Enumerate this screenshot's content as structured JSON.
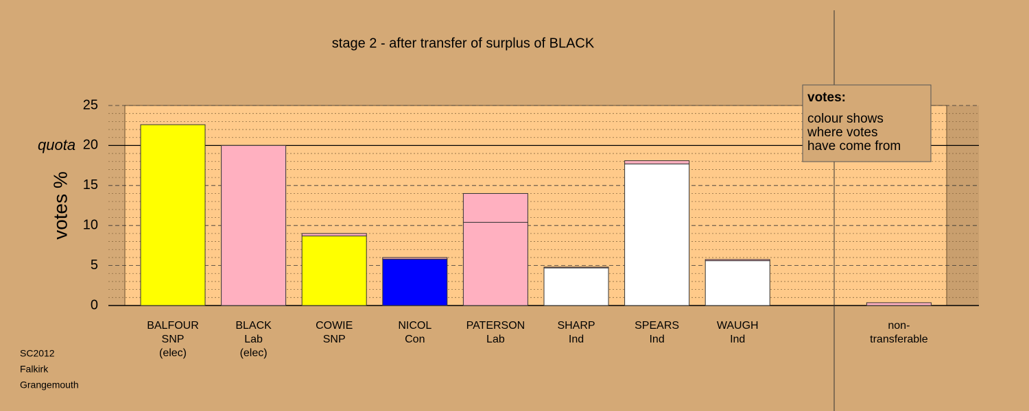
{
  "chart_data": {
    "type": "stacked_bar",
    "title": "stage 2 - after transfer of surplus of BLACK",
    "y_label": "votes %",
    "quota_label": "quota",
    "quota": 20,
    "categories": [
      [
        "BALFOUR",
        "SNP",
        "(elec)"
      ],
      [
        "BLACK",
        "Lab",
        "(elec)"
      ],
      [
        "COWIE",
        "SNP"
      ],
      [
        "NICOL",
        "Con"
      ],
      [
        "PATERSON",
        "Lab"
      ],
      [
        "SHARP",
        "Ind"
      ],
      [
        "SPEARS",
        "Ind"
      ],
      [
        "WAUGH",
        "Ind"
      ],
      null,
      [
        "non-",
        "transferable"
      ]
    ],
    "series": [
      {
        "colors": [
          "#ffff00",
          "#ffb0c0",
          "#ffff00",
          "#0000ff",
          "#ffb0c0",
          "#ffffff",
          "#ffffff",
          "#ffffff",
          null,
          null
        ],
        "values": [
          22.6,
          20,
          8.7,
          5.8,
          10.4,
          4.7,
          17.7,
          5.6,
          null,
          null
        ]
      },
      {
        "color": "#ffb0c0",
        "values": [
          null,
          null,
          0.3,
          0.2,
          3.6,
          0.1,
          0.4,
          0.15,
          null,
          0.35
        ]
      }
    ],
    "ylim": [
      0,
      25
    ],
    "yticks": [
      0,
      5,
      10,
      15,
      20,
      25
    ],
    "minor_yticks": [
      1,
      2,
      3,
      4,
      6,
      7,
      8,
      9,
      11,
      12,
      13,
      14,
      16,
      17,
      18,
      19,
      21,
      22,
      23,
      24
    ],
    "legend": {
      "title": "votes:",
      "lines": [
        "colour shows",
        "where votes",
        "have come from"
      ]
    },
    "footer": [
      "SC2012",
      "Falkirk",
      "Grangemouth"
    ]
  }
}
